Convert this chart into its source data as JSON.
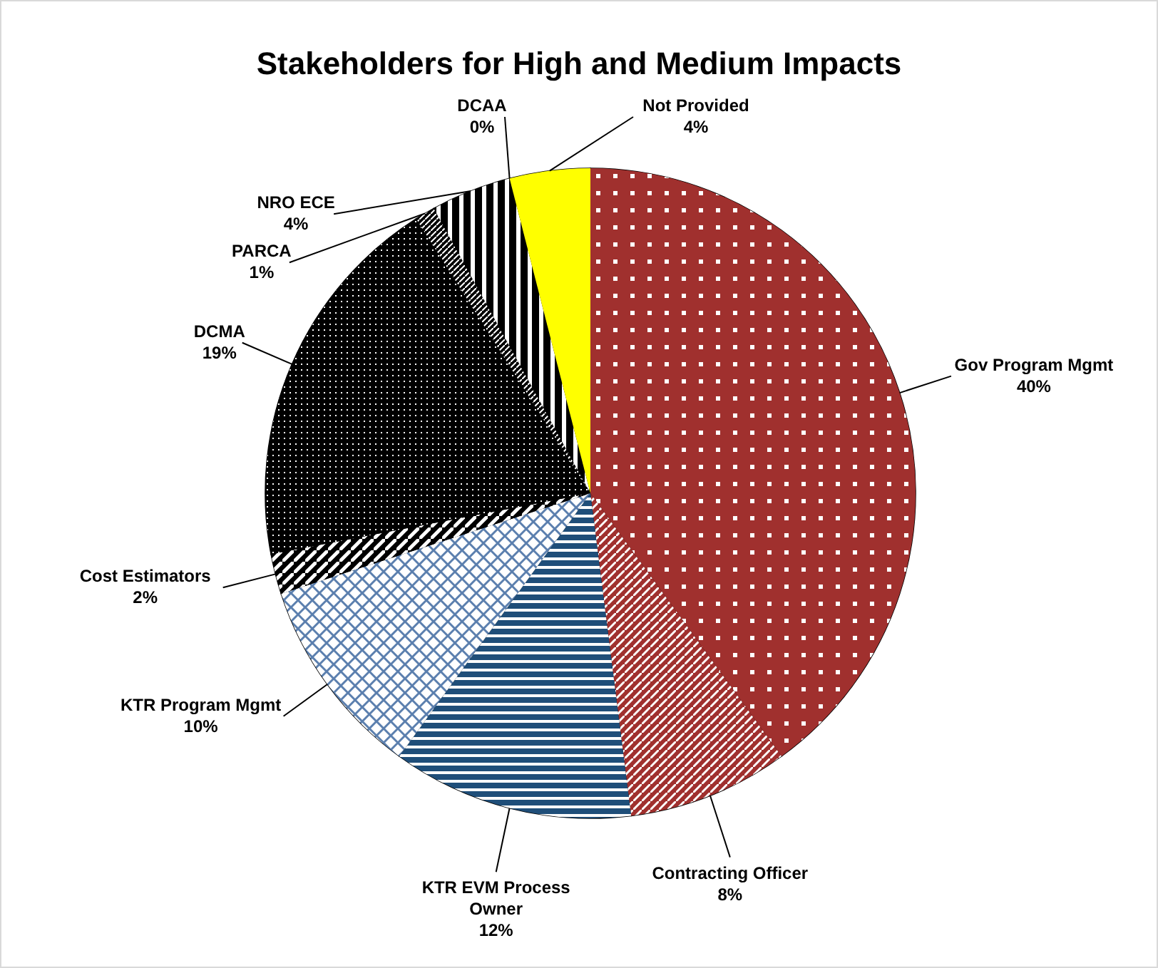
{
  "chart_data": {
    "type": "pie",
    "title": "Stakeholders for High and Medium Impacts",
    "categories": [
      "Gov Program Mgmt",
      "Contracting Officer",
      "KTR EVM Process Owner",
      "KTR Program Mgmt",
      "Cost Estimators",
      "DCMA",
      "PARCA",
      "NRO ECE",
      "DCAA",
      "Not Provided"
    ],
    "values": [
      40,
      8,
      12,
      10,
      2,
      19,
      1,
      4,
      0,
      4
    ],
    "colors": [
      "#a0302e",
      "#a0302e",
      "#1f4e79",
      "#5b7fae",
      "#000000",
      "#000000",
      "#000000",
      "#000000",
      "#000000",
      "#ffff00"
    ],
    "value_labels": [
      "40%",
      "8%",
      "12%",
      "10%",
      "2%",
      "19%",
      "1%",
      "4%",
      "0%",
      "4%"
    ],
    "data_labels": false
  }
}
